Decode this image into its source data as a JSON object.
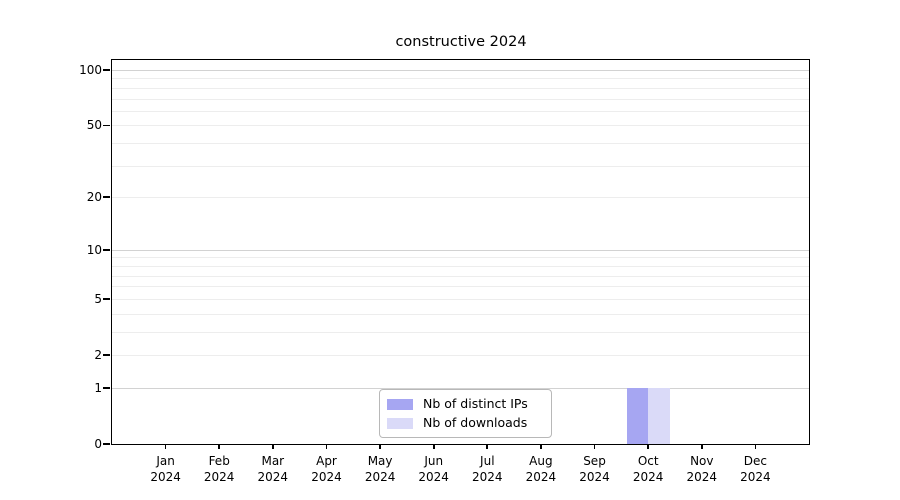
{
  "chart_data": {
    "type": "bar",
    "title": "constructive 2024",
    "year": "2024",
    "categories": [
      "Jan",
      "Feb",
      "Mar",
      "Apr",
      "May",
      "Jun",
      "Jul",
      "Aug",
      "Sep",
      "Oct",
      "Nov",
      "Dec"
    ],
    "series": [
      {
        "name": "Nb of distinct IPs",
        "color": "#a6a6f2",
        "values": [
          0,
          0,
          0,
          0,
          0,
          0,
          0,
          0,
          0,
          1,
          0,
          0
        ]
      },
      {
        "name": "Nb of downloads",
        "color": "#dadaf8",
        "values": [
          0,
          0,
          0,
          0,
          0,
          0,
          0,
          0,
          0,
          1,
          0,
          0
        ]
      }
    ],
    "yticks": [
      0,
      1,
      2,
      5,
      10,
      20,
      50,
      100
    ],
    "ylim": [
      0,
      113
    ],
    "scale": "symlog-log1p",
    "grid": {
      "major_values": [
        1,
        10,
        100
      ],
      "minor_values": [
        2,
        3,
        4,
        5,
        6,
        7,
        8,
        9,
        20,
        30,
        40,
        50,
        60,
        70,
        80,
        90
      ],
      "major_color": "#d2d2d2",
      "minor_color": "#ededed"
    },
    "legend_position": "bottom-center",
    "xlabel": "",
    "ylabel": ""
  }
}
